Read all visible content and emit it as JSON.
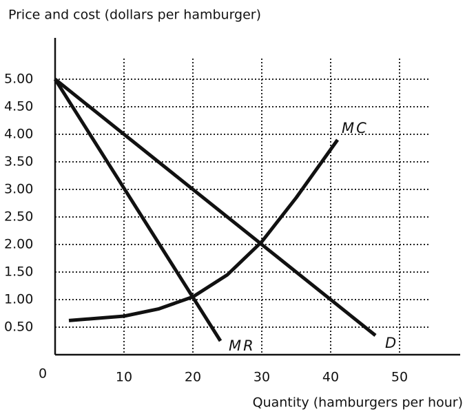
{
  "chart_data": {
    "type": "line",
    "title": "Price and cost (dollars per hamburger)",
    "x_label": "Quantity (hamburgers per hour)",
    "xlim": [
      0,
      58.8
    ],
    "ylim": [
      0,
      5.75
    ],
    "xticks": [
      0,
      10,
      20,
      30,
      40,
      50
    ],
    "yticks": [
      {
        "value": 0.5,
        "label": "0.50"
      },
      {
        "value": 1,
        "label": "1.00"
      },
      {
        "value": 1.5,
        "label": "1.50"
      },
      {
        "value": 2,
        "label": "2.00"
      },
      {
        "value": 2.5,
        "label": "2.50"
      },
      {
        "value": 3,
        "label": "3.00"
      },
      {
        "value": 3.5,
        "label": "3.50"
      },
      {
        "value": 4,
        "label": "4.00"
      },
      {
        "value": 4.5,
        "label": "4.50"
      },
      {
        "value": 5,
        "label": "5.00"
      }
    ],
    "grid": true,
    "series": [
      {
        "name": "D",
        "color": "#111111",
        "x": [
          0,
          46.5
        ],
        "values": [
          5,
          0.35
        ]
      },
      {
        "name": "MR",
        "color": "#111111",
        "x": [
          0,
          24
        ],
        "values": [
          5,
          0.25
        ]
      },
      {
        "name": "MC",
        "color": "#111111",
        "x": [
          2,
          10,
          15,
          20,
          25,
          30,
          35,
          41
        ],
        "values": [
          0.62,
          0.7,
          0.83,
          1.05,
          1.45,
          2.05,
          2.85,
          3.9
        ]
      }
    ]
  }
}
